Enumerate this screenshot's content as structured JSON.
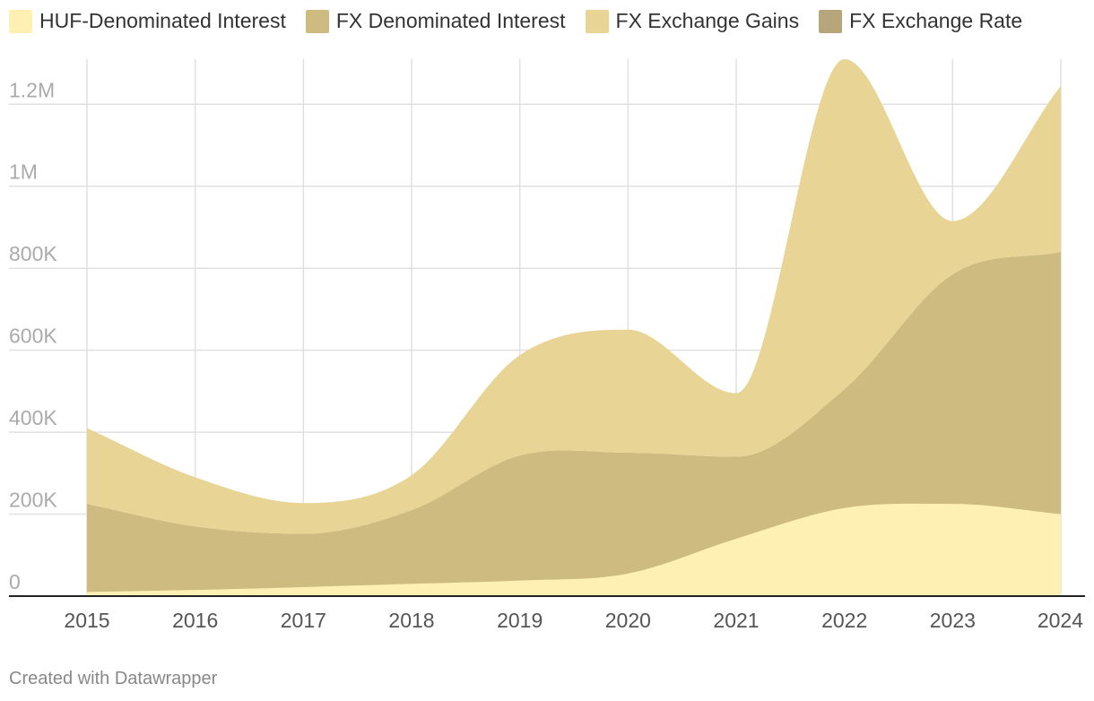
{
  "chart_data": {
    "type": "area",
    "stacked": true,
    "x": [
      "2015",
      "2016",
      "2017",
      "2018",
      "2019",
      "2020",
      "2021",
      "2022",
      "2023",
      "2024"
    ],
    "series": [
      {
        "name": "HUF-Denominated Interest",
        "color": "#fdf0b2",
        "values": [
          10000,
          15000,
          22000,
          30000,
          38000,
          55000,
          140000,
          215000,
          225000,
          200000
        ]
      },
      {
        "name": "FX Denominated Interest",
        "color": "#cdbb7f",
        "values": [
          215000,
          155000,
          130000,
          180000,
          305000,
          295000,
          200000,
          290000,
          560000,
          640000
        ]
      },
      {
        "name": "FX Exchange Gains",
        "color": "#e8d595",
        "values": [
          185000,
          120000,
          75000,
          85000,
          245000,
          300000,
          155000,
          805000,
          130000,
          405000
        ]
      },
      {
        "name": "FX Exchange Rate",
        "color": "#b6a67a",
        "values": [
          0,
          0,
          0,
          0,
          0,
          0,
          0,
          0,
          0,
          0
        ]
      }
    ],
    "y_ticks": [
      0,
      200000,
      400000,
      600000,
      800000,
      1000000,
      1200000
    ],
    "y_tick_labels": [
      "0",
      "200K",
      "400K",
      "600K",
      "800K",
      "1M",
      "1.2M"
    ],
    "ylim": [
      0,
      1310000
    ],
    "grid": true,
    "legend_position": "top-left",
    "xlabel": "",
    "ylabel": "",
    "title": ""
  },
  "footer": {
    "credit": "Created with Datawrapper"
  }
}
